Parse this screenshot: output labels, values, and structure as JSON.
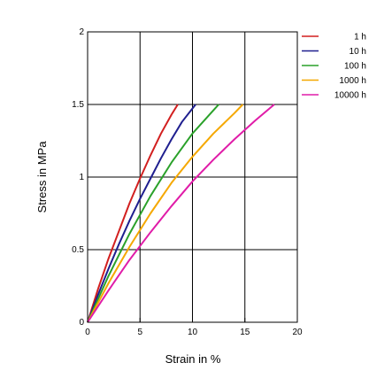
{
  "chart_data": {
    "type": "line",
    "title": "",
    "xlabel": "Strain in %",
    "ylabel": "Stress in MPa",
    "xlim": [
      0,
      20
    ],
    "ylim": [
      0,
      2
    ],
    "x_ticks": [
      0,
      5,
      10,
      15,
      20
    ],
    "y_ticks": [
      0,
      0.5,
      1,
      1.5,
      2
    ],
    "x_tick_labels": [
      "0",
      "5",
      "10",
      "15",
      "20"
    ],
    "y_tick_labels": [
      "0",
      "0.5",
      "1",
      "1.5",
      "2"
    ],
    "grid": true,
    "legend_position": "top-right",
    "series": [
      {
        "name": "1 h",
        "color": "#d21f1f",
        "points": [
          [
            0,
            0
          ],
          [
            1,
            0.23
          ],
          [
            2,
            0.44
          ],
          [
            3,
            0.63
          ],
          [
            4,
            0.82
          ],
          [
            5,
            0.99
          ],
          [
            6,
            1.15
          ],
          [
            7,
            1.3
          ],
          [
            8,
            1.43
          ],
          [
            8.6,
            1.5
          ]
        ]
      },
      {
        "name": "10 h",
        "color": "#1f1f8f",
        "points": [
          [
            0,
            0
          ],
          [
            1,
            0.19
          ],
          [
            2,
            0.37
          ],
          [
            3,
            0.54
          ],
          [
            4,
            0.7
          ],
          [
            5,
            0.85
          ],
          [
            6,
            0.99
          ],
          [
            7,
            1.13
          ],
          [
            8,
            1.26
          ],
          [
            9,
            1.38
          ],
          [
            10.3,
            1.5
          ]
        ]
      },
      {
        "name": "100 h",
        "color": "#2aa12a",
        "points": [
          [
            0,
            0
          ],
          [
            2,
            0.32
          ],
          [
            4,
            0.61
          ],
          [
            6,
            0.87
          ],
          [
            8,
            1.1
          ],
          [
            10,
            1.3
          ],
          [
            12,
            1.46
          ],
          [
            12.5,
            1.5
          ]
        ]
      },
      {
        "name": "1000 h",
        "color": "#f5a800",
        "points": [
          [
            0,
            0
          ],
          [
            2,
            0.27
          ],
          [
            4,
            0.52
          ],
          [
            6,
            0.75
          ],
          [
            8,
            0.96
          ],
          [
            10,
            1.14
          ],
          [
            12,
            1.3
          ],
          [
            14,
            1.44
          ],
          [
            14.8,
            1.5
          ]
        ]
      },
      {
        "name": "10000 h",
        "color": "#e01ca8",
        "points": [
          [
            0,
            0
          ],
          [
            2,
            0.22
          ],
          [
            4,
            0.43
          ],
          [
            6,
            0.62
          ],
          [
            8,
            0.8
          ],
          [
            10,
            0.97
          ],
          [
            12,
            1.12
          ],
          [
            14,
            1.26
          ],
          [
            16,
            1.39
          ],
          [
            17.8,
            1.5
          ]
        ]
      }
    ]
  }
}
